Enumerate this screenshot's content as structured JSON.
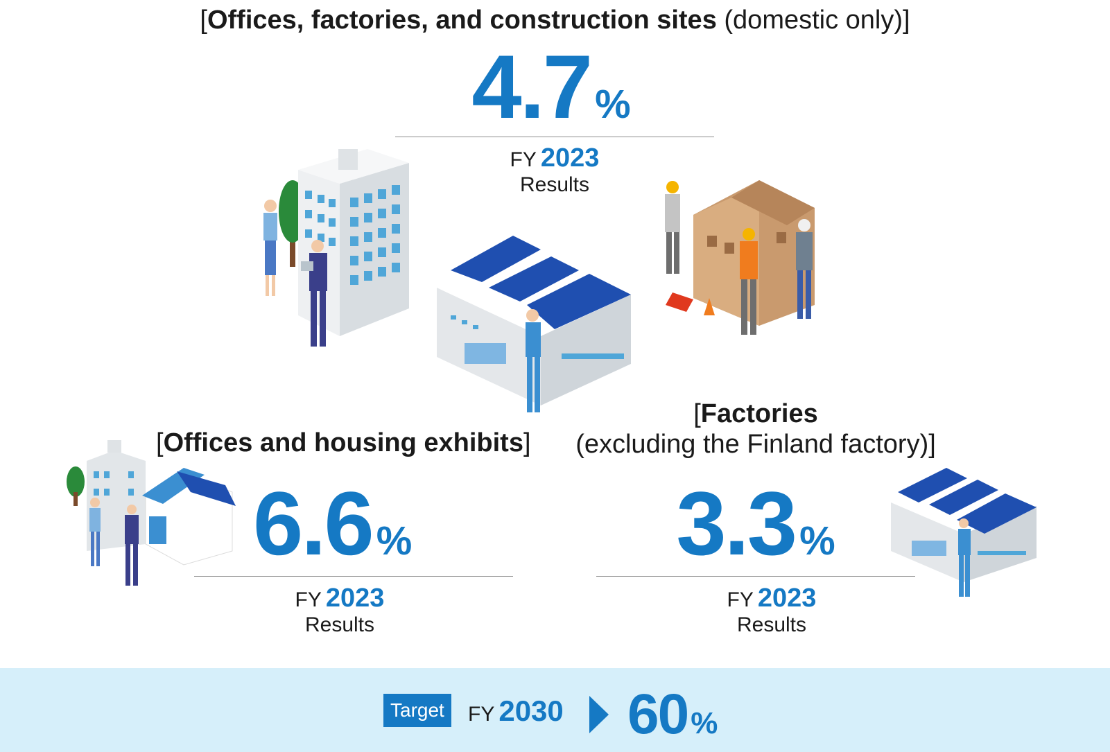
{
  "top": {
    "heading_bold": "Offices, factories, and construction sites",
    "heading_rest": "(domestic only)",
    "value": "4.7",
    "unit": "%",
    "fy_label": "FY",
    "year": "2023",
    "results": "Results"
  },
  "left": {
    "heading_bold": "Offices and housing exhibits",
    "value": "6.6",
    "unit": "%",
    "fy_label": "FY",
    "year": "2023",
    "results": "Results"
  },
  "right": {
    "heading_line1": "Factories",
    "heading_line2": "(excluding the Finland factory)",
    "value": "3.3",
    "unit": "%",
    "fy_label": "FY",
    "year": "2023",
    "results": "Results"
  },
  "target": {
    "badge": "Target",
    "fy_label": "FY",
    "year": "2030",
    "value": "60",
    "unit": "%"
  },
  "colors": {
    "accent_blue": "#1579c4",
    "band": "#d6effa",
    "roof_blue": "#1f4fb0"
  }
}
